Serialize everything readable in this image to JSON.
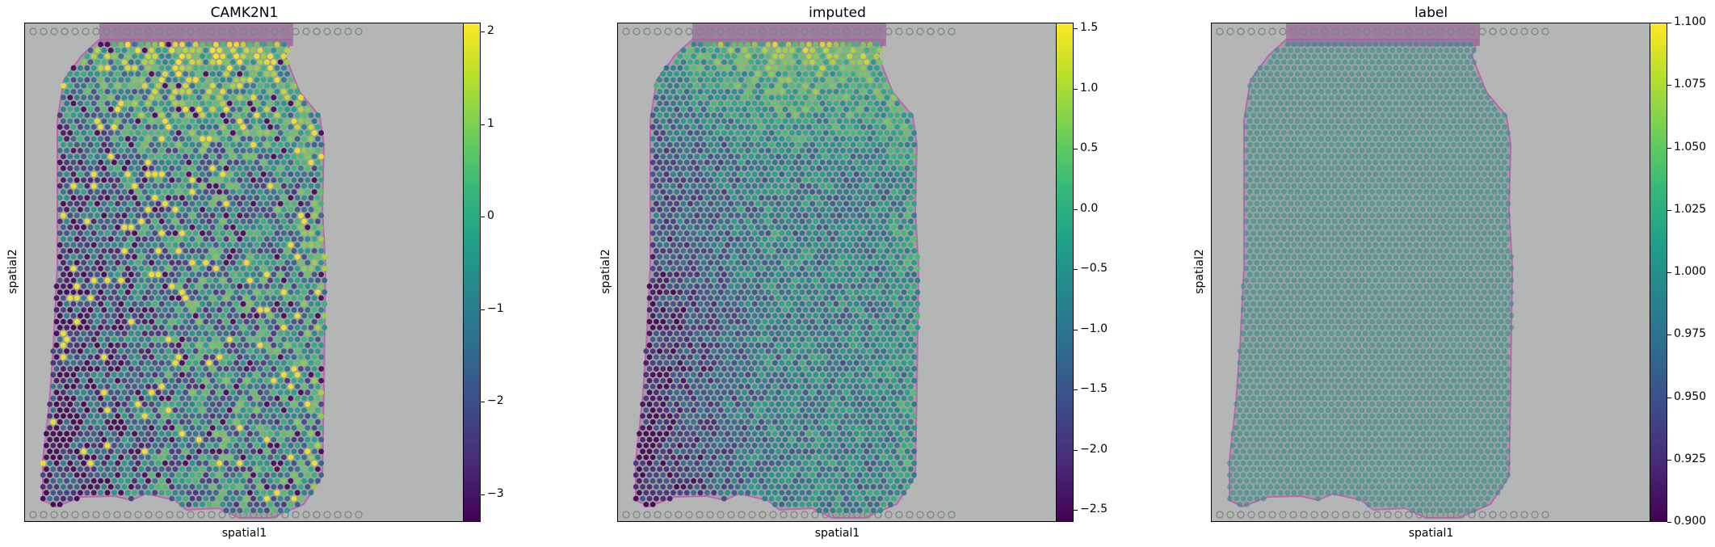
{
  "figure": {
    "colormap_stops": [
      "#440154",
      "#482878",
      "#3e4989",
      "#31688e",
      "#26828e",
      "#1f9e89",
      "#35b779",
      "#6ece58",
      "#b5de2b",
      "#fde725"
    ]
  },
  "chart_data": [
    {
      "type": "scatter",
      "subtype": "spatial-spot-map",
      "title": "CAMK2N1",
      "xlabel": "spatial1",
      "ylabel": "spatial2",
      "grid": false,
      "colorbar": {
        "min": -3.3,
        "max": 2.1,
        "ticks": [
          2,
          1,
          0,
          -1,
          -2,
          -3
        ],
        "tick_labels": [
          "2",
          "1",
          "0",
          "−1",
          "−2",
          "−3"
        ]
      },
      "value_pattern": "heterogeneous expression; higher values along the top and right margin, many very low spots on the left"
    },
    {
      "type": "scatter",
      "subtype": "spatial-spot-map",
      "title": "imputed",
      "xlabel": "spatial1",
      "ylabel": "spatial2",
      "grid": false,
      "colorbar": {
        "min": -2.6,
        "max": 1.55,
        "ticks": [
          1.5,
          1.0,
          0.5,
          0.0,
          -0.5,
          -1.0,
          -1.5,
          -2.0,
          -2.5
        ],
        "tick_labels": [
          "1.5",
          "1.0",
          "0.5",
          "0.0",
          "−0.5",
          "−1.0",
          "−1.5",
          "−2.0",
          "−2.5"
        ]
      },
      "value_pattern": "smoothed version of CAMK2N1; high band along top and right edge, low values lower-left"
    },
    {
      "type": "scatter",
      "subtype": "spatial-spot-map",
      "title": "label",
      "xlabel": "spatial1",
      "ylabel": "spatial2",
      "grid": false,
      "colorbar": {
        "min": 0.9,
        "max": 1.1,
        "ticks": [
          1.1,
          1.075,
          1.05,
          1.025,
          1.0,
          0.975,
          0.95,
          0.925,
          0.9
        ],
        "tick_labels": [
          "1.100",
          "1.075",
          "1.050",
          "1.025",
          "1.000",
          "0.975",
          "0.950",
          "0.925",
          "0.900"
        ]
      },
      "value_pattern": "all spots have value 1.0 (uniform teal)"
    }
  ]
}
